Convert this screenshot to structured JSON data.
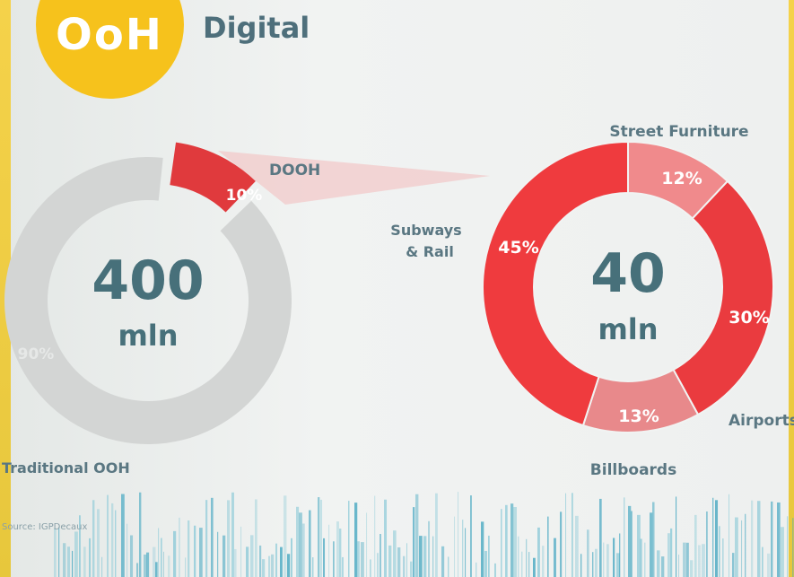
{
  "header": {
    "logo_text": "OoH",
    "title": "Digital"
  },
  "colors": {
    "accent_yellow": "#f6c21c",
    "title_teal": "#4e6f7b",
    "traditional_grey": "#d3d5d4",
    "dooh_red": "#e03a3d",
    "street_furniture": "#f08a8c",
    "airports": "#ea3b3f",
    "billboards": "#e8898b",
    "subways_rail": "#ef3b3e"
  },
  "chart_data": [
    {
      "type": "pie",
      "donut": true,
      "center_value": "400",
      "center_unit": "mln",
      "slices": [
        {
          "label": "DOOH",
          "value": 10,
          "value_label": "10%"
        },
        {
          "label": "Traditional OOH",
          "value": 90,
          "value_label": "90%"
        }
      ]
    },
    {
      "type": "pie",
      "donut": true,
      "center_value": "40",
      "center_unit": "mln",
      "slices": [
        {
          "label": "Street Furniture",
          "value": 12,
          "value_label": "12%"
        },
        {
          "label": "Airports",
          "value": 30,
          "value_label": "30%"
        },
        {
          "label": "Billboards",
          "value": 13,
          "value_label": "13%"
        },
        {
          "label": "Subways & Rail",
          "value": 45,
          "value_label": "45%"
        }
      ]
    }
  ],
  "labels": {
    "subways_line1": "Subways",
    "subways_line2": "& Rail"
  },
  "footer": {
    "source": "Source: IGPDecaux"
  }
}
